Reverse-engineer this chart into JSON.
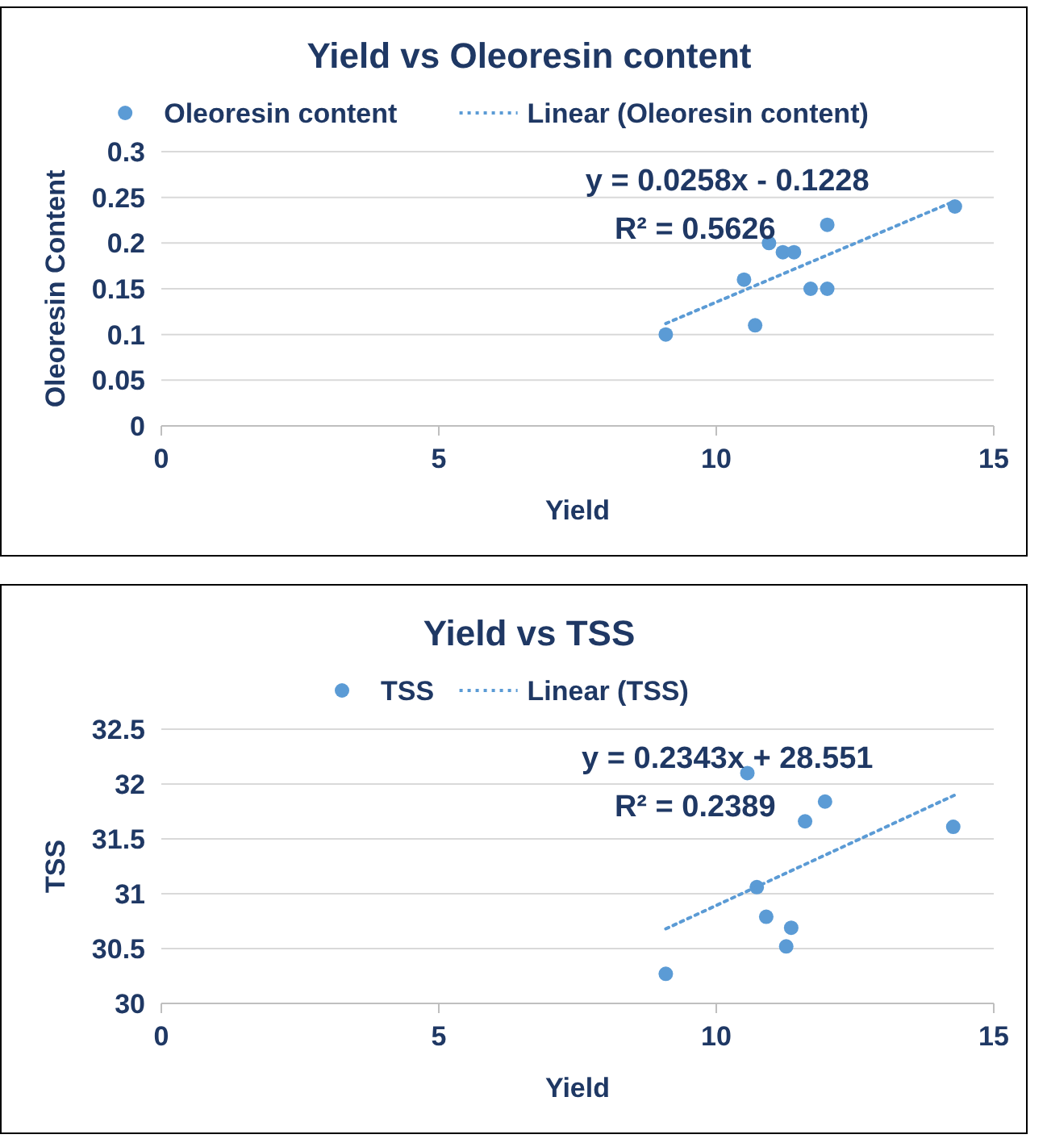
{
  "chart_data": [
    {
      "type": "scatter",
      "title": "Yield vs Oleoresin content",
      "xlabel": "Yield",
      "ylabel": "Oleoresin Content",
      "xlim": [
        0,
        15
      ],
      "xticks": [
        0,
        5,
        10,
        15
      ],
      "ylim": [
        0,
        0.3
      ],
      "yticks": [
        0,
        0.05,
        0.1,
        0.15,
        0.2,
        0.25,
        0.3
      ],
      "grid": "y",
      "legend": "top",
      "series": [
        {
          "name": "Oleoresin content",
          "color": "#5b9bd5",
          "marker": "circle",
          "x": [
            9.09,
            10.5,
            10.7,
            10.95,
            11.2,
            11.4,
            11.7,
            12,
            12,
            14.3
          ],
          "values": [
            0.1,
            0.16,
            0.11,
            0.2,
            0.19,
            0.19,
            0.15,
            0.15,
            0.22,
            0.24
          ]
        },
        {
          "name": "Linear (Oleoresin content)",
          "type": "line",
          "color": "#5b9bd5",
          "marker": "none",
          "line_style": "dotted",
          "x": [
            9.09,
            14.3
          ],
          "values": [
            0.112,
            0.246
          ]
        }
      ],
      "annotations": [
        "y = 0.0258x - 0.1228",
        "R² = 0.5626"
      ]
    },
    {
      "type": "scatter",
      "title": "Yield vs TSS",
      "xlabel": "Yield",
      "ylabel": "TSS",
      "xlim": [
        0,
        15
      ],
      "xticks": [
        0,
        5,
        10,
        15
      ],
      "ylim": [
        30,
        32.5
      ],
      "yticks": [
        30,
        30.5,
        31,
        31.5,
        32,
        32.5
      ],
      "grid": "y",
      "legend": "top",
      "series": [
        {
          "name": "TSS",
          "color": "#5b9bd5",
          "marker": "circle",
          "x": [
            9.09,
            10.56,
            10.73,
            10.9,
            11.26,
            11.35,
            11.6,
            11.96,
            14.27
          ],
          "values": [
            30.27,
            32.1,
            31.06,
            30.79,
            30.52,
            30.69,
            31.66,
            31.84,
            31.61
          ]
        },
        {
          "name": "Linear (TSS)",
          "type": "line",
          "color": "#5b9bd5",
          "marker": "none",
          "line_style": "dotted",
          "x": [
            9.09,
            14.3
          ],
          "values": [
            30.68,
            31.9
          ]
        }
      ],
      "annotations": [
        "y = 0.2343x + 28.551",
        "R² = 0.2389"
      ]
    }
  ]
}
